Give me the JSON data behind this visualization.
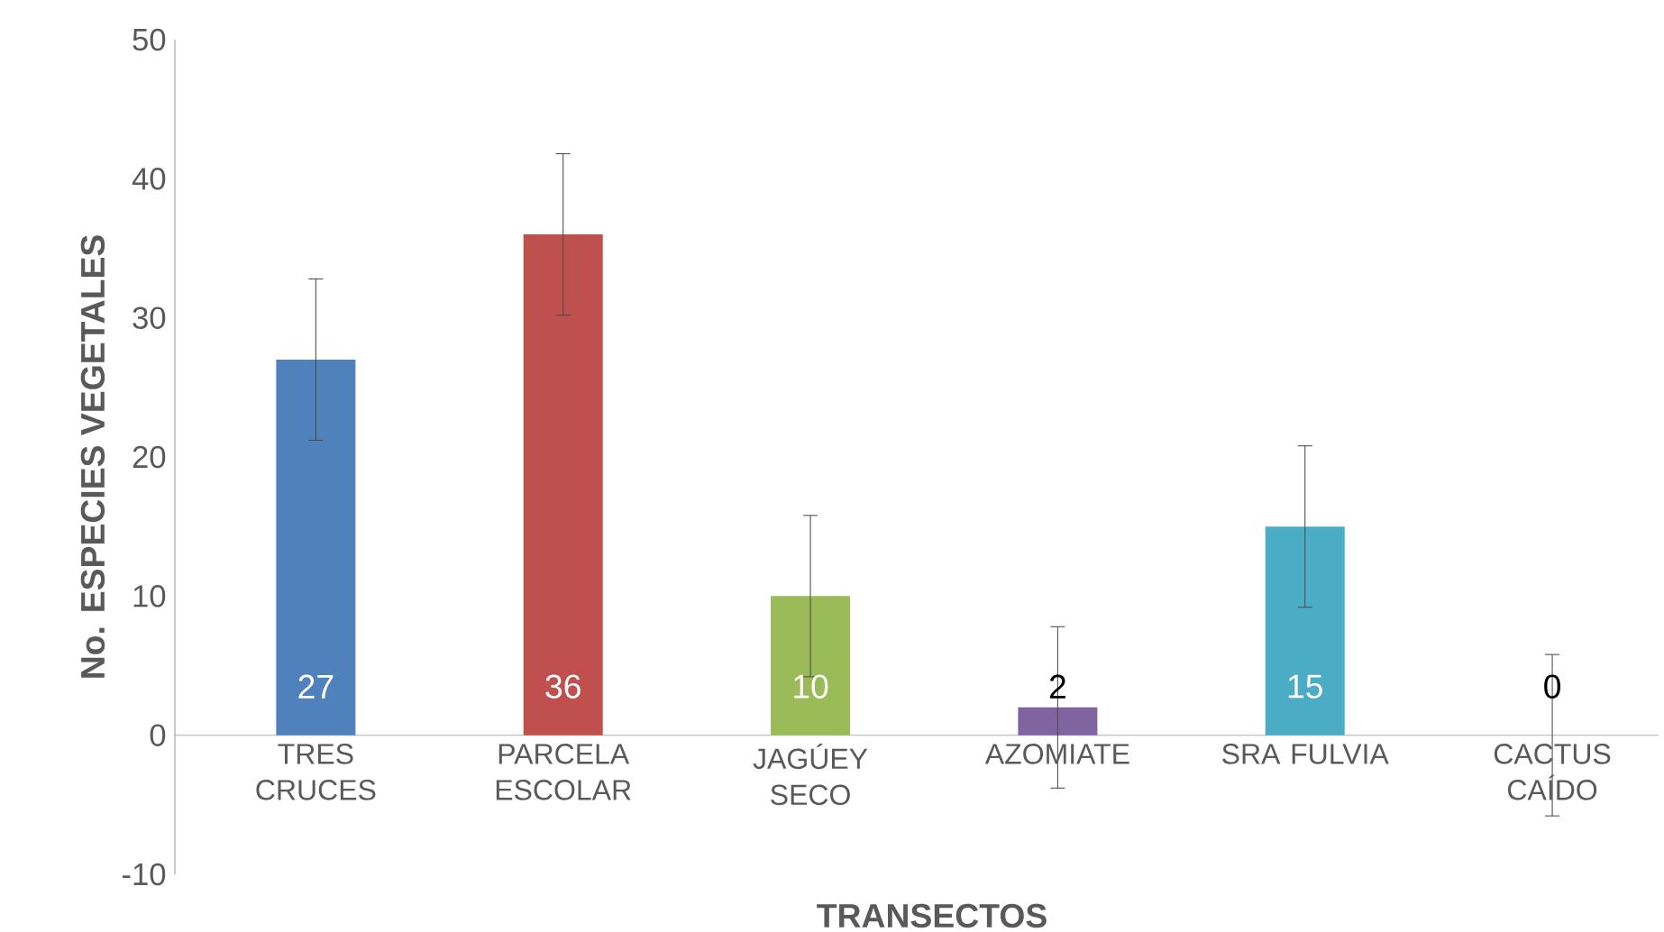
{
  "chart_data": {
    "type": "bar",
    "xlabel": "TRANSECTOS",
    "ylabel": "No. ESPECIES VEGETALES",
    "categories": [
      "TRES CRUCES",
      "PARCELA ESCOLAR",
      "JAGÚEY SECO",
      "AZOMIATE",
      "SRA FULVIA",
      "CACTUS CAÍDO"
    ],
    "values": [
      27,
      36,
      10,
      2,
      15,
      0
    ],
    "colors": [
      "#4f81bd",
      "#c0504d",
      "#9bbb59",
      "#8064a2",
      "#4bacc6",
      "#f79646"
    ],
    "errors": [
      5.8,
      5.8,
      5.8,
      5.8,
      5.8,
      5.8
    ],
    "data_labels": true,
    "ylim": [
      -10,
      50
    ],
    "yticks": [
      -10,
      0,
      10,
      20,
      30,
      40,
      50
    ],
    "grid": false
  }
}
